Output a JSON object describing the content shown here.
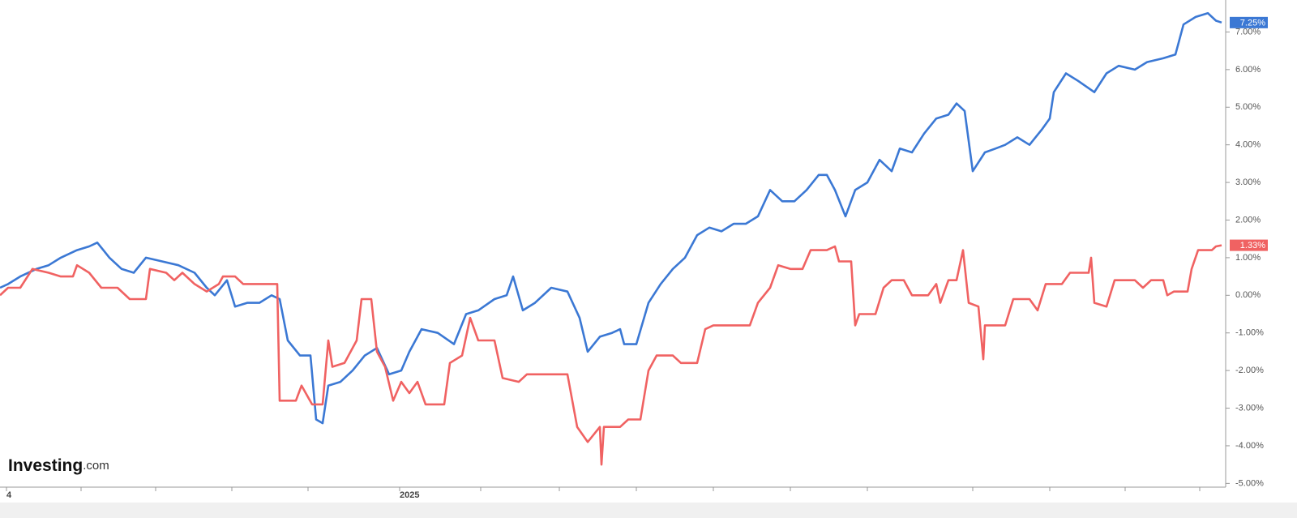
{
  "logo": {
    "brand": "Investing",
    "suffix": ".com"
  },
  "chart_data": {
    "type": "line",
    "xlim": [
      0,
      302
    ],
    "xticks": [
      {
        "value": 1.6,
        "label": "4"
      },
      {
        "value": 20,
        "label": null
      },
      {
        "value": 38.4,
        "label": null
      },
      {
        "value": 57.2,
        "label": null
      },
      {
        "value": 76,
        "label": null
      },
      {
        "value": 98.6,
        "label": "2025"
      },
      {
        "value": 118.6,
        "label": null
      },
      {
        "value": 138,
        "label": null
      },
      {
        "value": 157,
        "label": null
      },
      {
        "value": 176,
        "label": null
      },
      {
        "value": 195,
        "label": null
      },
      {
        "value": 214,
        "label": null
      },
      {
        "value": 240,
        "label": null
      },
      {
        "value": 259,
        "label": null
      },
      {
        "value": 277.6,
        "label": null
      },
      {
        "value": 296,
        "label": null
      }
    ],
    "ylim": [
      -5.1,
      7.85
    ],
    "yticks": [
      {
        "value": -5,
        "label": "-5.00%"
      },
      {
        "value": -4,
        "label": "-4.00%"
      },
      {
        "value": -3,
        "label": "-3.00%"
      },
      {
        "value": -2,
        "label": "-2.00%"
      },
      {
        "value": -1,
        "label": "-1.00%"
      },
      {
        "value": 0,
        "label": "0.00%"
      },
      {
        "value": 1,
        "label": "1.00%"
      },
      {
        "value": 2,
        "label": "2.00%"
      },
      {
        "value": 3,
        "label": "3.00%"
      },
      {
        "value": 4,
        "label": "4.00%"
      },
      {
        "value": 5,
        "label": "5.00%"
      },
      {
        "value": 6,
        "label": "6.00%"
      },
      {
        "value": 7,
        "label": "7.00%"
      }
    ],
    "series": [
      {
        "color": "#3b78d4",
        "x": [
          0,
          2,
          5,
          9,
          12,
          15,
          19,
          22,
          24,
          27,
          30,
          33,
          36,
          40,
          44,
          48,
          51,
          53,
          56,
          58,
          61,
          64,
          67,
          69,
          71,
          74,
          76.6,
          78,
          79.6,
          81,
          84,
          87,
          90,
          93,
          96,
          99,
          101,
          104,
          108,
          112,
          115,
          118,
          122,
          125,
          126.6,
          129,
          132,
          136,
          140,
          143,
          145,
          148,
          151,
          153,
          154,
          157,
          160,
          163,
          166,
          169,
          172,
          175,
          178,
          181,
          184,
          187,
          190,
          193,
          196,
          199,
          202,
          204,
          206,
          208.6,
          211,
          214,
          217,
          220,
          222,
          225,
          228,
          231,
          234,
          236,
          238,
          240,
          243,
          245.6,
          248,
          251,
          254,
          257,
          259,
          260,
          263,
          266,
          270,
          273,
          276,
          280,
          283,
          287,
          290,
          292,
          295,
          298,
          300,
          301.4
        ],
        "values": [
          0.2,
          0.3,
          0.5,
          0.7,
          0.8,
          1.0,
          1.2,
          1.3,
          1.4,
          1.0,
          0.7,
          0.6,
          1.0,
          0.9,
          0.8,
          0.6,
          0.2,
          0.0,
          0.4,
          -0.3,
          -0.2,
          -0.2,
          0.0,
          -0.1,
          -1.2,
          -1.6,
          -1.6,
          -3.3,
          -3.4,
          -2.4,
          -2.3,
          -2.0,
          -1.6,
          -1.4,
          -2.1,
          -2.0,
          -1.5,
          -0.9,
          -1.0,
          -1.3,
          -0.5,
          -0.4,
          -0.1,
          0.0,
          0.5,
          -0.4,
          -0.2,
          0.2,
          0.1,
          -0.6,
          -1.5,
          -1.1,
          -1.0,
          -0.9,
          -1.3,
          -1.3,
          -0.2,
          0.3,
          0.7,
          1.0,
          1.6,
          1.8,
          1.7,
          1.9,
          1.9,
          2.1,
          2.8,
          2.5,
          2.5,
          2.8,
          3.2,
          3.2,
          2.8,
          2.1,
          2.8,
          3.0,
          3.6,
          3.3,
          3.9,
          3.8,
          4.3,
          4.7,
          4.8,
          5.1,
          4.9,
          3.3,
          3.8,
          3.9,
          4.0,
          4.2,
          4.0,
          4.4,
          4.7,
          5.4,
          5.9,
          5.7,
          5.4,
          5.9,
          6.1,
          6.0,
          6.2,
          6.3,
          6.4,
          7.2,
          7.4,
          7.5,
          7.3,
          7.25
        ],
        "end_label": {
          "value": 7.25,
          "label": "7.25%"
        }
      },
      {
        "color": "#f06262",
        "x": [
          0,
          2,
          5,
          8,
          12,
          15,
          18,
          19,
          22,
          25,
          29,
          32,
          36,
          37,
          41,
          43,
          45,
          48,
          51,
          54,
          55,
          58,
          60,
          64,
          68.4,
          69,
          73,
          74.4,
          77,
          79.6,
          81,
          82,
          85,
          88,
          89.2,
          91.6,
          93,
          95,
          97,
          99,
          101,
          103,
          105,
          109.6,
          111,
          114,
          116,
          118,
          122,
          124,
          128,
          130,
          140,
          142.4,
          145,
          148,
          148.4,
          149,
          153,
          155,
          158,
          160,
          162,
          166,
          168,
          172,
          174,
          176,
          185,
          187,
          190,
          192,
          195,
          198,
          200,
          204,
          206,
          207,
          210,
          211,
          212,
          216,
          218,
          220,
          223,
          225,
          229,
          231,
          232,
          234,
          236,
          237.6,
          239,
          241.4,
          242.6,
          243,
          248,
          250,
          254,
          256,
          258,
          262,
          264,
          268.6,
          269.2,
          270,
          273,
          275,
          280,
          282,
          284,
          287,
          288,
          289.6,
          293,
          294,
          295.6,
          299,
          300,
          301.4
        ],
        "values": [
          0.0,
          0.2,
          0.2,
          0.7,
          0.6,
          0.5,
          0.5,
          0.8,
          0.6,
          0.2,
          0.2,
          -0.1,
          -0.1,
          0.7,
          0.6,
          0.4,
          0.6,
          0.3,
          0.1,
          0.3,
          0.5,
          0.5,
          0.3,
          0.3,
          0.3,
          -2.8,
          -2.8,
          -2.4,
          -2.9,
          -2.9,
          -1.2,
          -1.9,
          -1.8,
          -1.2,
          -0.1,
          -0.1,
          -1.5,
          -1.9,
          -2.8,
          -2.3,
          -2.6,
          -2.3,
          -2.9,
          -2.9,
          -1.8,
          -1.6,
          -0.6,
          -1.2,
          -1.2,
          -2.2,
          -2.3,
          -2.1,
          -2.1,
          -3.5,
          -3.9,
          -3.5,
          -4.5,
          -3.5,
          -3.5,
          -3.3,
          -3.3,
          -2.0,
          -1.6,
          -1.6,
          -1.8,
          -1.8,
          -0.9,
          -0.8,
          -0.8,
          -0.2,
          0.2,
          0.8,
          0.7,
          0.7,
          1.2,
          1.2,
          1.3,
          0.9,
          0.9,
          -0.8,
          -0.5,
          -0.5,
          0.2,
          0.4,
          0.4,
          0.0,
          0.0,
          0.3,
          -0.2,
          0.4,
          0.4,
          1.2,
          -0.2,
          -0.3,
          -1.7,
          -0.8,
          -0.8,
          -0.1,
          -0.1,
          -0.4,
          0.3,
          0.3,
          0.6,
          0.6,
          1.0,
          -0.2,
          -0.3,
          0.4,
          0.4,
          0.2,
          0.4,
          0.4,
          0.0,
          0.1,
          0.1,
          0.7,
          1.2,
          1.2,
          1.3,
          1.33
        ],
        "end_label": {
          "value": 1.33,
          "label": "1.33%"
        }
      }
    ]
  }
}
